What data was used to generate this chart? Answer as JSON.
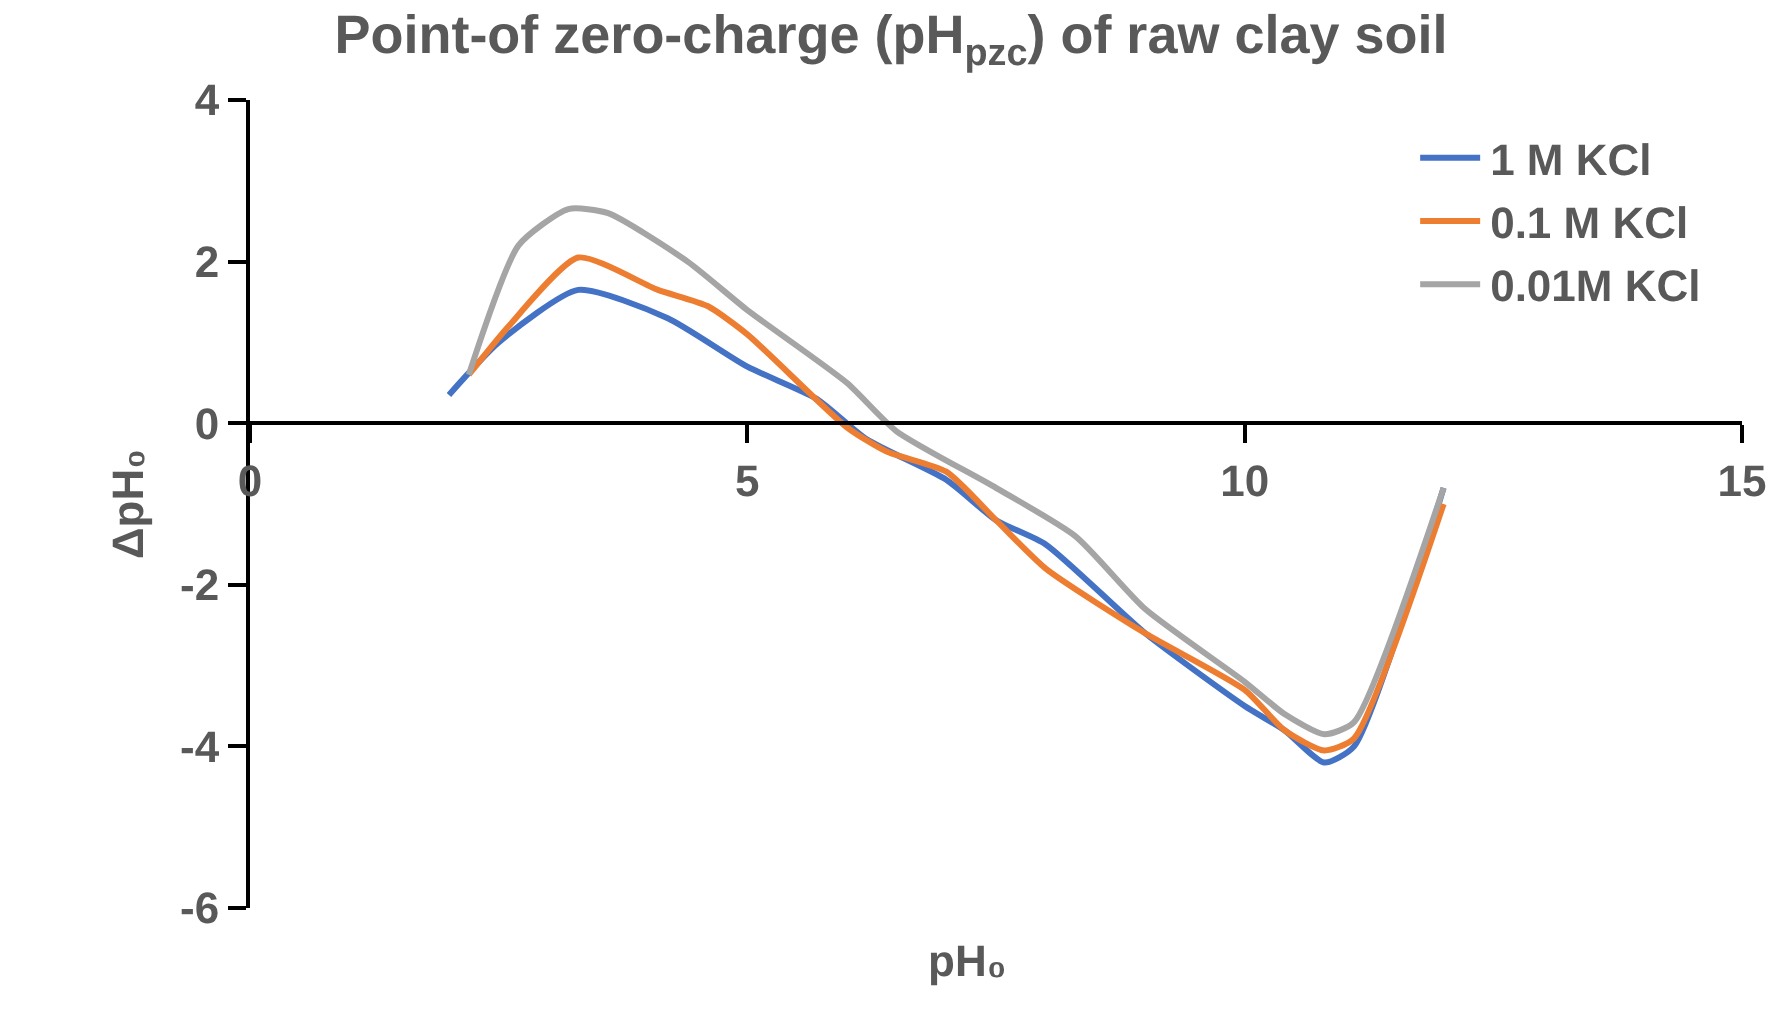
{
  "chart_data": {
    "type": "line",
    "title": "Point-of zero-charge (pH$_{pzc}$) of raw clay soil",
    "xlabel": "pH₀",
    "ylabel": "ΔpH₀",
    "xlim": [
      0,
      15
    ],
    "xticks": [
      0,
      5,
      10,
      15
    ],
    "ylim": [
      -6,
      4
    ],
    "yticks": [
      -6,
      -4,
      -2,
      0,
      2,
      4
    ],
    "grid": false,
    "legend": "top right",
    "marker": "none",
    "line_style": "solid",
    "series": [
      {
        "name": "1 M KCl",
        "color": "#4472c4",
        "x": [
          2,
          2.5,
          3.3,
          4.2,
          5,
          5.7,
          6.2,
          7,
          7.5,
          8,
          9,
          10,
          10.4,
          10.8,
          11.1,
          12
        ],
        "values": [
          0.35,
          1.0,
          1.65,
          1.3,
          0.7,
          0.3,
          -0.2,
          -0.7,
          -1.2,
          -1.5,
          -2.6,
          -3.5,
          -3.8,
          -4.2,
          -4.0,
          -0.8
        ]
      },
      {
        "name": "0.1 M KCl",
        "color": "#ed7d31",
        "x": [
          2.2,
          2.6,
          3.3,
          4.1,
          4.6,
          5,
          6,
          6.4,
          7,
          7.5,
          8,
          9,
          10,
          10.4,
          10.8,
          11.1,
          12
        ],
        "values": [
          0.6,
          1.2,
          2.05,
          1.65,
          1.45,
          1.1,
          -0.05,
          -0.35,
          -0.6,
          -1.2,
          -1.8,
          -2.6,
          -3.3,
          -3.8,
          -4.05,
          -3.9,
          -1.0
        ]
      },
      {
        "name": "0.01M KCl",
        "color": "#a5a5a5",
        "x": [
          2.2,
          2.7,
          3.2,
          3.6,
          4.4,
          5,
          6,
          6.5,
          7.5,
          8.3,
          9,
          10,
          10.4,
          10.8,
          11.1,
          12
        ],
        "values": [
          0.6,
          2.2,
          2.65,
          2.6,
          2.0,
          1.4,
          0.5,
          -0.1,
          -0.8,
          -1.4,
          -2.3,
          -3.2,
          -3.6,
          -3.85,
          -3.7,
          -0.8
        ]
      }
    ]
  }
}
